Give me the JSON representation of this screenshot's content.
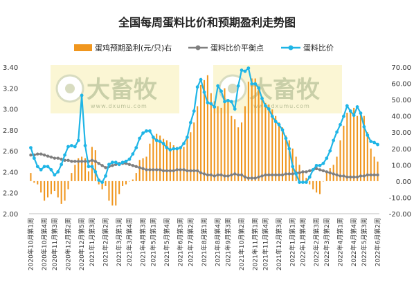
{
  "chart_data": {
    "type": "bar+line",
    "title": "全国每周蛋料比价和预期盈利走势图",
    "watermark": {
      "text": "大畜牧",
      "sub": "www.dxumu.com"
    },
    "colors": {
      "bar": "#f0961e",
      "breakeven": "#7f7f7f",
      "ratio": "#1fb5e6"
    },
    "left_axis": {
      "min": 2.0,
      "max": 3.4,
      "step": 0.2,
      "ticks": [
        "2.00",
        "2.20",
        "2.40",
        "2.60",
        "2.80",
        "3.00",
        "3.20",
        "3.40"
      ]
    },
    "right_axis": {
      "min": -20,
      "max": 70,
      "step": 10,
      "ticks": [
        "-20.00",
        "-10.00",
        "0.00",
        "10.00",
        "20.00",
        "30.00",
        "40.00",
        "50.00",
        "60.00",
        "70.00"
      ]
    },
    "series": [
      {
        "name": "蛋鸡预期盈利(元/只)右",
        "type": "bar",
        "axis": "right",
        "values": [
          5,
          -1,
          -2,
          -7,
          -12,
          -10,
          -8,
          -6,
          -10,
          -14,
          -12,
          -5,
          5,
          10,
          14,
          15,
          14,
          6,
          21,
          19,
          -2,
          -5,
          -3,
          -12,
          -15,
          -15,
          -8,
          -3,
          -2,
          0,
          1,
          5,
          13,
          14,
          15,
          23,
          28,
          29,
          28,
          26,
          25,
          24,
          22,
          21,
          20,
          21,
          26,
          30,
          36,
          46,
          59,
          62,
          65,
          54,
          49,
          46,
          45,
          57,
          50,
          40,
          38,
          33,
          36,
          46,
          61,
          63,
          63,
          58,
          52,
          48,
          47,
          44,
          40,
          36,
          33,
          28,
          25,
          20,
          15,
          10,
          5,
          2,
          -2,
          -5,
          -7,
          -8,
          0,
          5,
          8,
          10,
          15,
          25,
          34,
          42,
          44,
          45,
          40,
          42,
          40,
          30,
          20,
          15,
          12
        ]
      },
      {
        "name": "蛋料比价平衡点",
        "type": "line",
        "axis": "left",
        "values": [
          2.56,
          2.56,
          2.57,
          2.57,
          2.56,
          2.55,
          2.54,
          2.53,
          2.53,
          2.52,
          2.51,
          2.51,
          2.5,
          2.5,
          2.5,
          2.5,
          2.5,
          2.5,
          2.51,
          2.5,
          2.48,
          2.46,
          2.44,
          2.45,
          2.46,
          2.47,
          2.48,
          2.48,
          2.48,
          2.47,
          2.46,
          2.45,
          2.44,
          2.43,
          2.42,
          2.42,
          2.42,
          2.42,
          2.42,
          2.41,
          2.41,
          2.41,
          2.41,
          2.42,
          2.42,
          2.42,
          2.41,
          2.41,
          2.41,
          2.41,
          2.39,
          2.38,
          2.37,
          2.37,
          2.36,
          2.37,
          2.37,
          2.36,
          2.36,
          2.37,
          2.38,
          2.37,
          2.37,
          2.35,
          2.34,
          2.34,
          2.34,
          2.35,
          2.36,
          2.37,
          2.37,
          2.37,
          2.37,
          2.37,
          2.37,
          2.38,
          2.38,
          2.38,
          2.39,
          2.39,
          2.4,
          2.4,
          2.41,
          2.42,
          2.43,
          2.42,
          2.41,
          2.4,
          2.39,
          2.38,
          2.37,
          2.36,
          2.36,
          2.35,
          2.35,
          2.35,
          2.35,
          2.36,
          2.36,
          2.37,
          2.37,
          2.37,
          2.37
        ]
      },
      {
        "name": "蛋料比价",
        "type": "line",
        "axis": "left",
        "values": [
          2.63,
          2.53,
          2.45,
          2.42,
          2.45,
          2.45,
          2.42,
          2.37,
          2.4,
          2.47,
          2.56,
          2.64,
          2.65,
          2.64,
          2.7,
          3.13,
          2.65,
          2.45,
          2.45,
          2.4,
          2.32,
          2.3,
          2.36,
          2.47,
          2.49,
          2.49,
          2.47,
          2.49,
          2.5,
          2.52,
          2.57,
          2.63,
          2.72,
          2.77,
          2.79,
          2.79,
          2.73,
          2.7,
          2.69,
          2.67,
          2.63,
          2.61,
          2.62,
          2.62,
          2.63,
          2.67,
          2.73,
          2.87,
          2.98,
          3.21,
          3.28,
          3.16,
          3.06,
          3.05,
          3.02,
          3.22,
          3.17,
          3.07,
          3.08,
          3.07,
          3.0,
          3.22,
          3.37,
          3.36,
          3.39,
          3.24,
          3.24,
          3.2,
          3.1,
          3.03,
          3.0,
          2.93,
          2.88,
          2.85,
          2.8,
          2.72,
          2.62,
          2.45,
          2.38,
          2.3,
          2.3,
          2.3,
          2.35,
          2.42,
          2.46,
          2.46,
          2.48,
          2.53,
          2.6,
          2.7,
          2.78,
          2.85,
          2.93,
          3.03,
          2.98,
          2.94,
          3.02,
          2.96,
          2.83,
          2.75,
          2.69,
          2.68,
          2.66
        ]
      }
    ],
    "x_labels": [
      "2020年10月第1周",
      "2020年10月第4周",
      "2020年11月第3周",
      "2020年12月第2周",
      "2020年12月第5周",
      "2021年1月第3周",
      "2021年2月第2周",
      "2021年3月第1周",
      "2021年3月第4周",
      "2021年4月第3周",
      "2021年5月第1周",
      "2021年5月第4周",
      "2021年6月第3周",
      "2021年7月第2周",
      "2021年8月第1周",
      "2021年8月第4周",
      "2021年9月第3周",
      "2021年10月第2周",
      "2021年11月第1周",
      "2021年11月第4周",
      "2021年12月第3周",
      "2022年1月第1周",
      "2022年1月第4周",
      "2022年2月第3周",
      "2022年3月第2周",
      "2022年4月第1周",
      "2022年4月第4周",
      "2022年5月第3周",
      "2022年6月第2周"
    ],
    "legend_position": "top",
    "grid": false
  }
}
